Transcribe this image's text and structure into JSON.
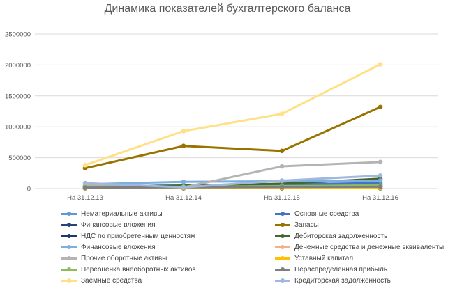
{
  "chart_data": {
    "type": "line",
    "title": "Динамика показателей бухгалтерского баланса",
    "categories": [
      "На 31.12.13",
      "На 31.12.14",
      "На 31.12.15",
      "На 31.12.16"
    ],
    "ylim": [
      0,
      2500000
    ],
    "yticks": [
      "0",
      "500000",
      "1000000",
      "1500000",
      "2000000",
      "2500000"
    ],
    "ytick_values": [
      0,
      500000,
      1000000,
      1500000,
      2000000,
      2500000
    ],
    "grid": true,
    "legend_position": "bottom",
    "series": [
      {
        "name": "Нематериальные активы",
        "color": "#5b9bd5",
        "values": [
          20000,
          60000,
          60000,
          60000
        ]
      },
      {
        "name": "Основные средства",
        "color": "#4472c4",
        "values": [
          30000,
          40000,
          70000,
          90000
        ]
      },
      {
        "name": "Финансовые вложения",
        "color": "#264478",
        "values": [
          10000,
          15000,
          30000,
          40000
        ]
      },
      {
        "name": "Запасы",
        "color": "#997300",
        "values": [
          330000,
          690000,
          610000,
          1320000
        ]
      },
      {
        "name": "НДС по приобретенным ценностям",
        "color": "#203864",
        "values": [
          5000,
          5000,
          5000,
          5000
        ]
      },
      {
        "name": "Дебиторская задолженность",
        "color": "#43682b",
        "values": [
          20000,
          50000,
          80000,
          160000
        ]
      },
      {
        "name": "Финансовые вложения",
        "color": "#7cafdd",
        "values": [
          70000,
          110000,
          120000,
          130000
        ]
      },
      {
        "name": "Денежные средства и денежные эквиваленты",
        "color": "#f4b183",
        "values": [
          10000,
          20000,
          20000,
          30000
        ]
      },
      {
        "name": "Прочие оборотные активы",
        "color": "#b4b4b4",
        "values": [
          60000,
          20000,
          360000,
          430000
        ]
      },
      {
        "name": "Уставный капитал",
        "color": "#ffc000",
        "values": [
          10000,
          10000,
          10000,
          10000
        ]
      },
      {
        "name": "Переоценка внеоборотных активов",
        "color": "#8fbc5a",
        "values": [
          30000,
          30000,
          40000,
          50000
        ]
      },
      {
        "name": "Нераспределенная прибыль",
        "color": "#7f7f7f",
        "values": [
          15000,
          20000,
          25000,
          30000
        ]
      },
      {
        "name": "Заемные средства",
        "color": "#ffe086",
        "values": [
          380000,
          930000,
          1210000,
          2010000
        ]
      },
      {
        "name": "Кредиторская задолженность",
        "color": "#a0b8e0",
        "values": [
          90000,
          20000,
          130000,
          210000
        ]
      }
    ]
  }
}
